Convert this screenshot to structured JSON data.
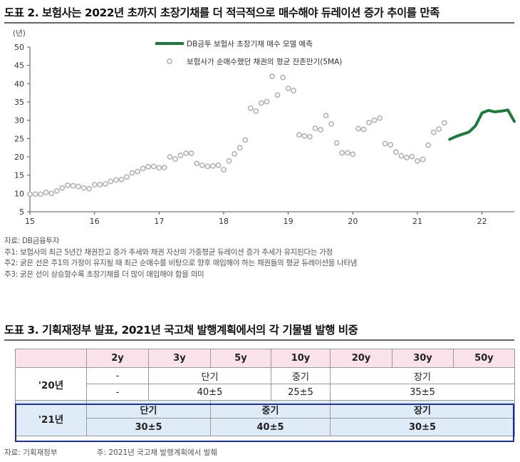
{
  "figure2": {
    "title": "도표 2. 보험사는 2022년 초까지 초장기채를 더 적극적으로 매수해야 듀레이션 증가 추이를 만족",
    "notes": [
      "자료: DB금융투자",
      "주1: 보험사의 최근 5년간 채권잔고 증가 추세와 채권 자산의 가중평균 듀레이션 증가 추세가 유지된다는 가정",
      "주2: 굵은 선은 주1의 가정이 유지될 때 최근 순매수를 비탕으로 향후 매입해야 하는 채권들의 평균 듀레이션을 나타냄",
      "주3: 굵은 선이 상승할수록 초장기채를 더 많이 매입해야 함을 의미"
    ]
  },
  "chart_data": {
    "type": "scatter",
    "ylabel": "(년)",
    "ylim": [
      5,
      50
    ],
    "yticks": [
      5,
      10,
      15,
      20,
      25,
      30,
      35,
      40,
      45,
      50
    ],
    "xlim": [
      15,
      22.5
    ],
    "xticks": [
      15,
      16,
      17,
      18,
      19,
      20,
      21,
      22
    ],
    "xtick_labels": [
      "15",
      "16",
      "17",
      "18",
      "19",
      "20",
      "21",
      "22"
    ],
    "grid": false,
    "legend_position": "top-right",
    "series": [
      {
        "name": "DB금투 보험사 초장기채 매수 모델 예측",
        "style": "line",
        "color": "#1e7a3a",
        "x": [
          21.5,
          21.6,
          21.7,
          21.8,
          21.9,
          22.0,
          22.1,
          22.2,
          22.3,
          22.4,
          22.5
        ],
        "y": [
          24.8,
          25.6,
          26.2,
          26.8,
          28.5,
          32.0,
          32.7,
          32.3,
          32.5,
          32.8,
          29.7
        ]
      },
      {
        "name": "보험사가 순매수했던 채권의 평균 잔존만기(5MA)",
        "style": "scatter",
        "color": "#b3b3b3",
        "x": [
          15.0,
          15.083,
          15.167,
          15.25,
          15.333,
          15.417,
          15.5,
          15.583,
          15.667,
          15.75,
          15.833,
          15.917,
          16.0,
          16.083,
          16.167,
          16.25,
          16.333,
          16.417,
          16.5,
          16.583,
          16.667,
          16.75,
          16.833,
          16.917,
          17.0,
          17.083,
          17.167,
          17.25,
          17.333,
          17.417,
          17.5,
          17.583,
          17.667,
          17.75,
          17.833,
          17.917,
          18.0,
          18.083,
          18.167,
          18.25,
          18.333,
          18.417,
          18.5,
          18.583,
          18.667,
          18.75,
          18.833,
          18.917,
          19.0,
          19.083,
          19.167,
          19.25,
          19.333,
          19.417,
          19.5,
          19.583,
          19.667,
          19.75,
          19.833,
          19.917,
          20.0,
          20.083,
          20.167,
          20.25,
          20.333,
          20.417,
          20.5,
          20.583,
          20.667,
          20.75,
          20.833,
          20.917,
          21.0,
          21.083,
          21.167,
          21.25,
          21.333,
          21.417
        ],
        "y": [
          9.8,
          9.8,
          9.8,
          10.3,
          10.0,
          10.7,
          11.5,
          12.2,
          12.1,
          11.9,
          11.5,
          11.3,
          12.4,
          12.4,
          12.6,
          13.3,
          13.7,
          13.8,
          14.5,
          15.6,
          16.0,
          16.8,
          17.3,
          17.4,
          17.0,
          17.1,
          20.0,
          19.4,
          20.4,
          21.0,
          21.0,
          18.2,
          17.7,
          17.4,
          17.5,
          17.7,
          16.5,
          18.9,
          20.8,
          22.5,
          24.6,
          33.3,
          32.5,
          34.7,
          35.1,
          42.0,
          36.9,
          41.7,
          38.7,
          38.1,
          26.0,
          25.7,
          25.5,
          27.8,
          27.4,
          31.3,
          29.0,
          23.8,
          21.1,
          21.1,
          20.7,
          27.7,
          27.5,
          29.4,
          30.0,
          30.6,
          23.6,
          23.3,
          21.3,
          20.3,
          19.8,
          20.1,
          18.9,
          19.3,
          23.2,
          26.7,
          27.6,
          29.3
        ]
      }
    ]
  },
  "figure3": {
    "title": "도표 3. 기획재정부 발표, 2021년 국고채 발행계획에서의 각 기물별 발행 비중",
    "columns": [
      "2y",
      "3y",
      "5y",
      "10y",
      "20y",
      "30y",
      "50y"
    ],
    "row20": {
      "label": "'20년",
      "cat_dash": "-",
      "cat_short": "단기",
      "cat_mid": "중기",
      "cat_long": "장기",
      "val_dash": "-",
      "val_short": "40±5",
      "val_mid": "25±5",
      "val_long": "35±5"
    },
    "row21": {
      "label": "'21년",
      "cat_short": "단기",
      "cat_mid": "중기",
      "cat_long": "장기",
      "val_short": "30±5",
      "val_mid": "40±5",
      "val_long": "30±5"
    },
    "source": "자료: 기획재정부",
    "note": "주: 2021년 국고채 발행계획에서 발췌"
  },
  "colors": {
    "model_line": "#1e7a3a",
    "dots": "#b3b3b3",
    "header_bg": "#f9e2ea",
    "row21_bg": "#e0ebf8",
    "highlight_border": "#1e2f9c"
  }
}
